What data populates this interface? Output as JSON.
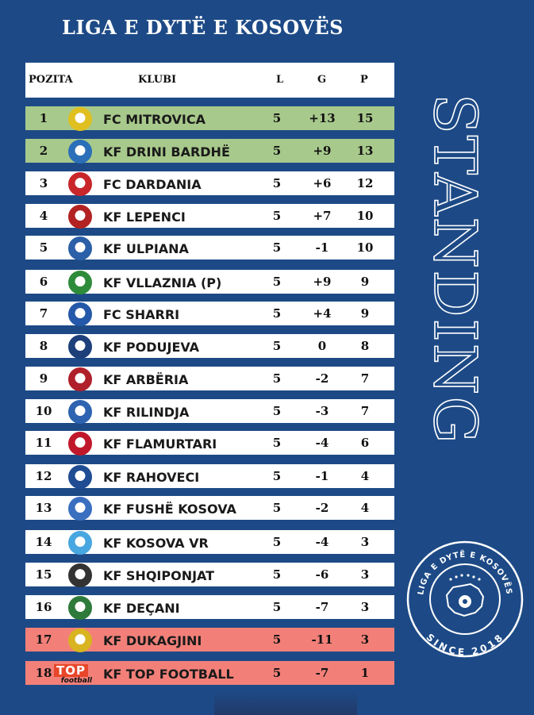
{
  "title": "LIGA E DYTË E KOSOVËS",
  "side_text": "STANDING",
  "logo": {
    "top_text": "LIGA E DYTË E KOSOVËS",
    "bottom_text": "SINCE 2018",
    "icon": "kosovo-map-ball-icon"
  },
  "headers": {
    "pos": "POZITA",
    "club": "KLUBI",
    "l": "L",
    "g": "G",
    "p": "P"
  },
  "colors": {
    "background": "#1d4a86",
    "promotion": "#a8c98c",
    "relegation": "#f28079",
    "row": "#ffffff"
  },
  "rows": [
    {
      "pos": "1",
      "club": "FC MITROVICA",
      "l": "5",
      "g": "+13",
      "p": "15",
      "status": "promotion",
      "crest": "#e0c020"
    },
    {
      "pos": "2",
      "club": "KF DRINI BARDHË",
      "l": "5",
      "g": "+9",
      "p": "13",
      "status": "promotion",
      "crest": "#2a6fb8"
    },
    {
      "pos": "3",
      "club": "FC DARDANIA",
      "l": "5",
      "g": "+6",
      "p": "12",
      "status": "",
      "crest": "#c8262b"
    },
    {
      "pos": "4",
      "club": "KF LEPENCI",
      "l": "5",
      "g": "+7",
      "p": "10",
      "status": "",
      "crest": "#b22222"
    },
    {
      "pos": "5",
      "club": "KF ULPIANA",
      "l": "5",
      "g": "-1",
      "p": "10",
      "status": "",
      "crest": "#2b5fa8"
    },
    {
      "pos": "6",
      "club": "KF VLLAZNIA (P)",
      "l": "5",
      "g": "+9",
      "p": "9",
      "status": "",
      "crest": "#2e8b3a"
    },
    {
      "pos": "7",
      "club": "FC SHARRI",
      "l": "5",
      "g": "+4",
      "p": "9",
      "status": "",
      "crest": "#2458a8"
    },
    {
      "pos": "8",
      "club": "KF PODUJEVA",
      "l": "5",
      "g": "0",
      "p": "8",
      "status": "",
      "crest": "#1d3f7a"
    },
    {
      "pos": "9",
      "club": "KF ARBËRIA",
      "l": "5",
      "g": "-2",
      "p": "7",
      "status": "",
      "crest": "#b0202a"
    },
    {
      "pos": "10",
      "club": "KF RILINDJA",
      "l": "5",
      "g": "-3",
      "p": "7",
      "status": "",
      "crest": "#2d63b0"
    },
    {
      "pos": "11",
      "club": "KF FLAMURTARI",
      "l": "5",
      "g": "-4",
      "p": "6",
      "status": "",
      "crest": "#c0182a"
    },
    {
      "pos": "12",
      "club": "KF RAHOVECI",
      "l": "5",
      "g": "-1",
      "p": "4",
      "status": "",
      "crest": "#1f4c93"
    },
    {
      "pos": "13",
      "club": "KF FUSHË KOSOVA",
      "l": "5",
      "g": "-2",
      "p": "4",
      "status": "",
      "crest": "#3a6fc0"
    },
    {
      "pos": "14",
      "club": "KF KOSOVA VR",
      "l": "5",
      "g": "-4",
      "p": "3",
      "status": "",
      "crest": "#48a6e0"
    },
    {
      "pos": "15",
      "club": "KF SHQIPONJAT",
      "l": "5",
      "g": "-6",
      "p": "3",
      "status": "",
      "crest": "#333333"
    },
    {
      "pos": "16",
      "club": "KF DEÇANI",
      "l": "5",
      "g": "-7",
      "p": "3",
      "status": "",
      "crest": "#2e7a3a"
    },
    {
      "pos": "17",
      "club": "KF DUKAGJINI",
      "l": "5",
      "g": "-11",
      "p": "3",
      "status": "relegation",
      "crest": "#d9b421"
    },
    {
      "pos": "18",
      "club": "KF TOP FOOTBALL",
      "l": "5",
      "g": "-7",
      "p": "1",
      "status": "relegation",
      "crest": "#e8462a",
      "crest_text": "TOP",
      "crest_sub": "football"
    }
  ]
}
